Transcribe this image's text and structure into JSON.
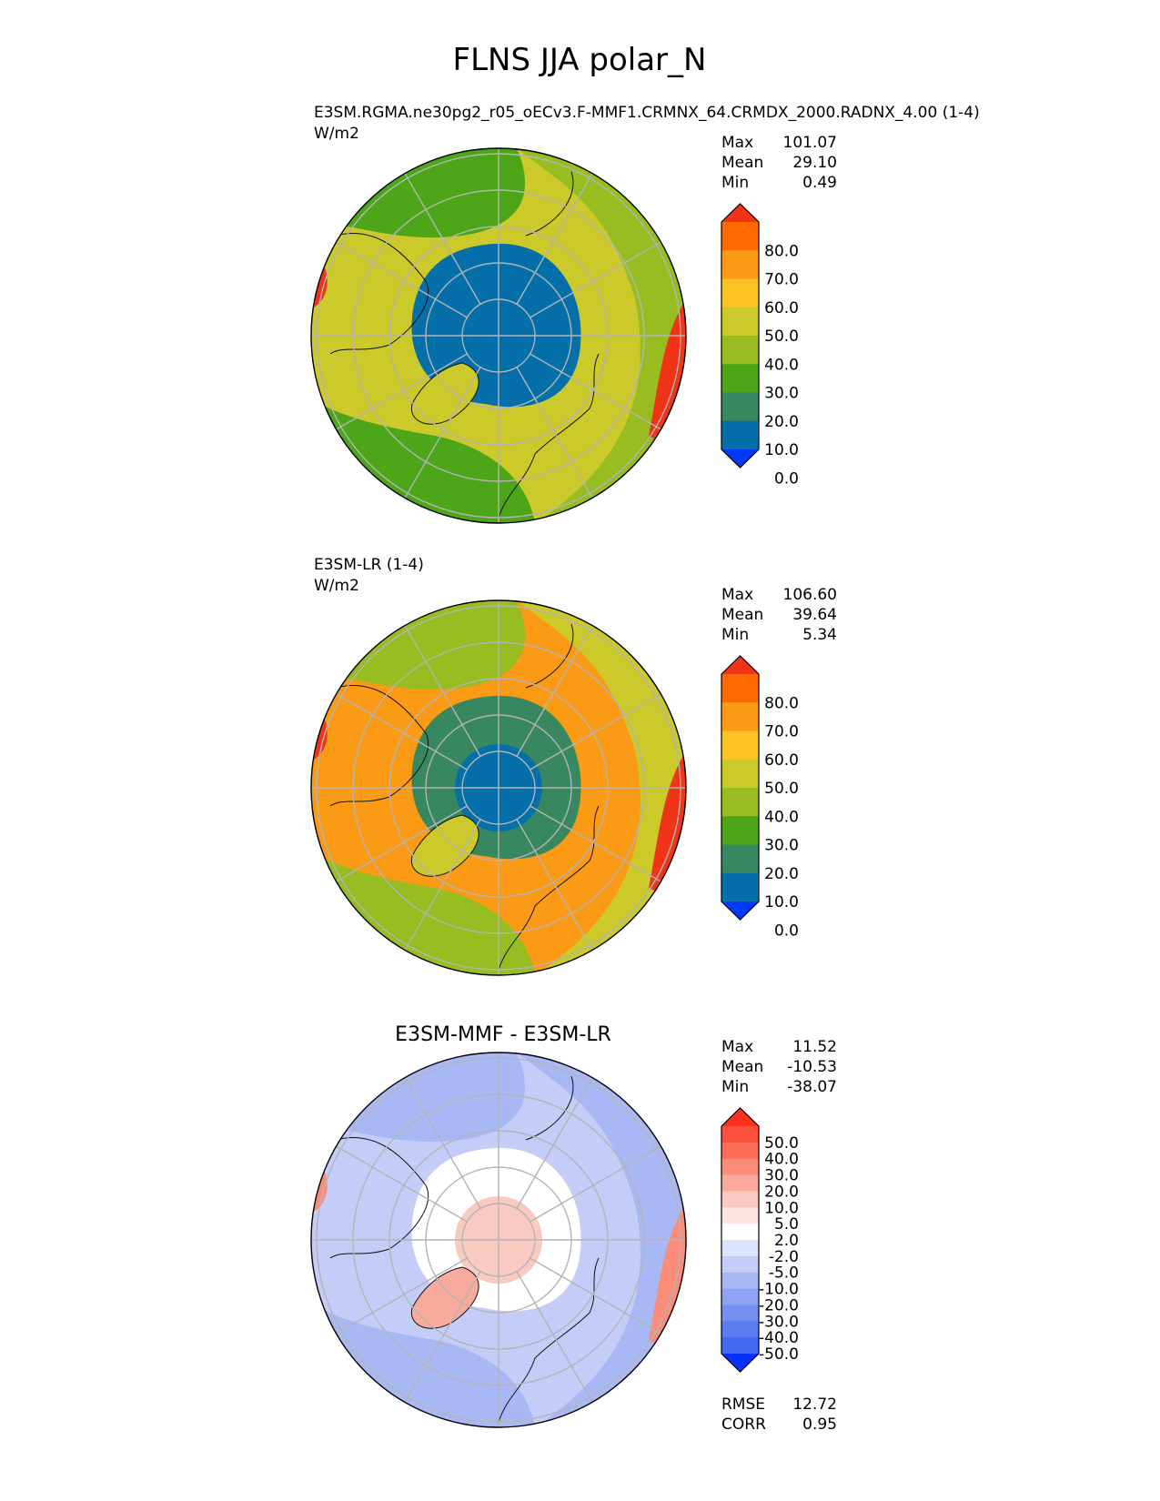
{
  "page": {
    "title": "FLNS JJA polar_N"
  },
  "chart_data": [
    {
      "type": "heatmap",
      "projection": "north-polar-stereographic",
      "title": "E3SM.RGMA.ne30pg2_r05_oECv3.F-MMF1.CRMNX_64.CRMDX_2000.RADNX_4.00 (1-4)",
      "units": "W/m2",
      "stats": [
        {
          "label": "Max",
          "value": "101.07"
        },
        {
          "label": "Mean",
          "value": "29.10"
        },
        {
          "label": "Min",
          "value": "0.49"
        }
      ],
      "colorbar": {
        "ticks": [
          "80.0",
          "70.0",
          "60.0",
          "50.0",
          "40.0",
          "30.0",
          "20.0",
          "10.0",
          "0.0"
        ],
        "colors": [
          "#f03418",
          "#ff6a00",
          "#fb9a14",
          "#fdc324",
          "#ccc92a",
          "#97bd20",
          "#4ca618",
          "#378860",
          "#046fa8",
          "#0138fa"
        ]
      },
      "fields": {
        "center": 8,
        "ice": 8,
        "atlantic": 4,
        "pacific": 5,
        "land": 6,
        "greenland": 4,
        "peak": 0
      }
    },
    {
      "type": "heatmap",
      "projection": "north-polar-stereographic",
      "title": "E3SM-LR (1-4)",
      "units": "W/m2",
      "stats": [
        {
          "label": "Max",
          "value": "106.60"
        },
        {
          "label": "Mean",
          "value": "39.64"
        },
        {
          "label": "Min",
          "value": "5.34"
        }
      ],
      "colorbar": {
        "ticks": [
          "80.0",
          "70.0",
          "60.0",
          "50.0",
          "40.0",
          "30.0",
          "20.0",
          "10.0",
          "0.0"
        ],
        "colors": [
          "#f03418",
          "#ff6a00",
          "#fb9a14",
          "#fdc324",
          "#ccc92a",
          "#97bd20",
          "#4ca618",
          "#378860",
          "#046fa8",
          "#0138fa"
        ]
      },
      "fields": {
        "center": 8,
        "ice": 7,
        "atlantic": 2,
        "pacific": 4,
        "land": 5,
        "greenland": 4,
        "peak": 0
      }
    },
    {
      "type": "heatmap",
      "projection": "north-polar-stereographic",
      "title": "E3SM-MMF - E3SM-LR",
      "units": "",
      "stats": [
        {
          "label": "Max",
          "value": "11.52"
        },
        {
          "label": "Mean",
          "value": "-10.53"
        },
        {
          "label": "Min",
          "value": "-38.07"
        }
      ],
      "colorbar": {
        "ticks": [
          "50.0",
          "40.0",
          "30.0",
          "20.0",
          "10.0",
          "5.0",
          "2.0",
          "-2.0",
          "-5.0",
          "-10.0",
          "-20.0",
          "-30.0",
          "-40.0",
          "-50.0"
        ],
        "colors": [
          "#fe2f1d",
          "#fe513d",
          "#fd6e5a",
          "#fc8c7a",
          "#f9aa9c",
          "#fac9c0",
          "#fbe4e1",
          "#ffffff",
          "#dde3fb",
          "#c3cdf8",
          "#a8b8f5",
          "#8ea3f2",
          "#748ff0",
          "#5b7cee",
          "#4169ef",
          "#0931fb"
        ]
      },
      "fields": {
        "center": 5,
        "ice": 7,
        "atlantic": 9,
        "pacific": 10,
        "land": 10,
        "greenland": 4,
        "peak": 3
      },
      "metrics": [
        {
          "label": "RMSE",
          "value": "12.72"
        },
        {
          "label": "CORR",
          "value": "0.95"
        }
      ]
    }
  ]
}
